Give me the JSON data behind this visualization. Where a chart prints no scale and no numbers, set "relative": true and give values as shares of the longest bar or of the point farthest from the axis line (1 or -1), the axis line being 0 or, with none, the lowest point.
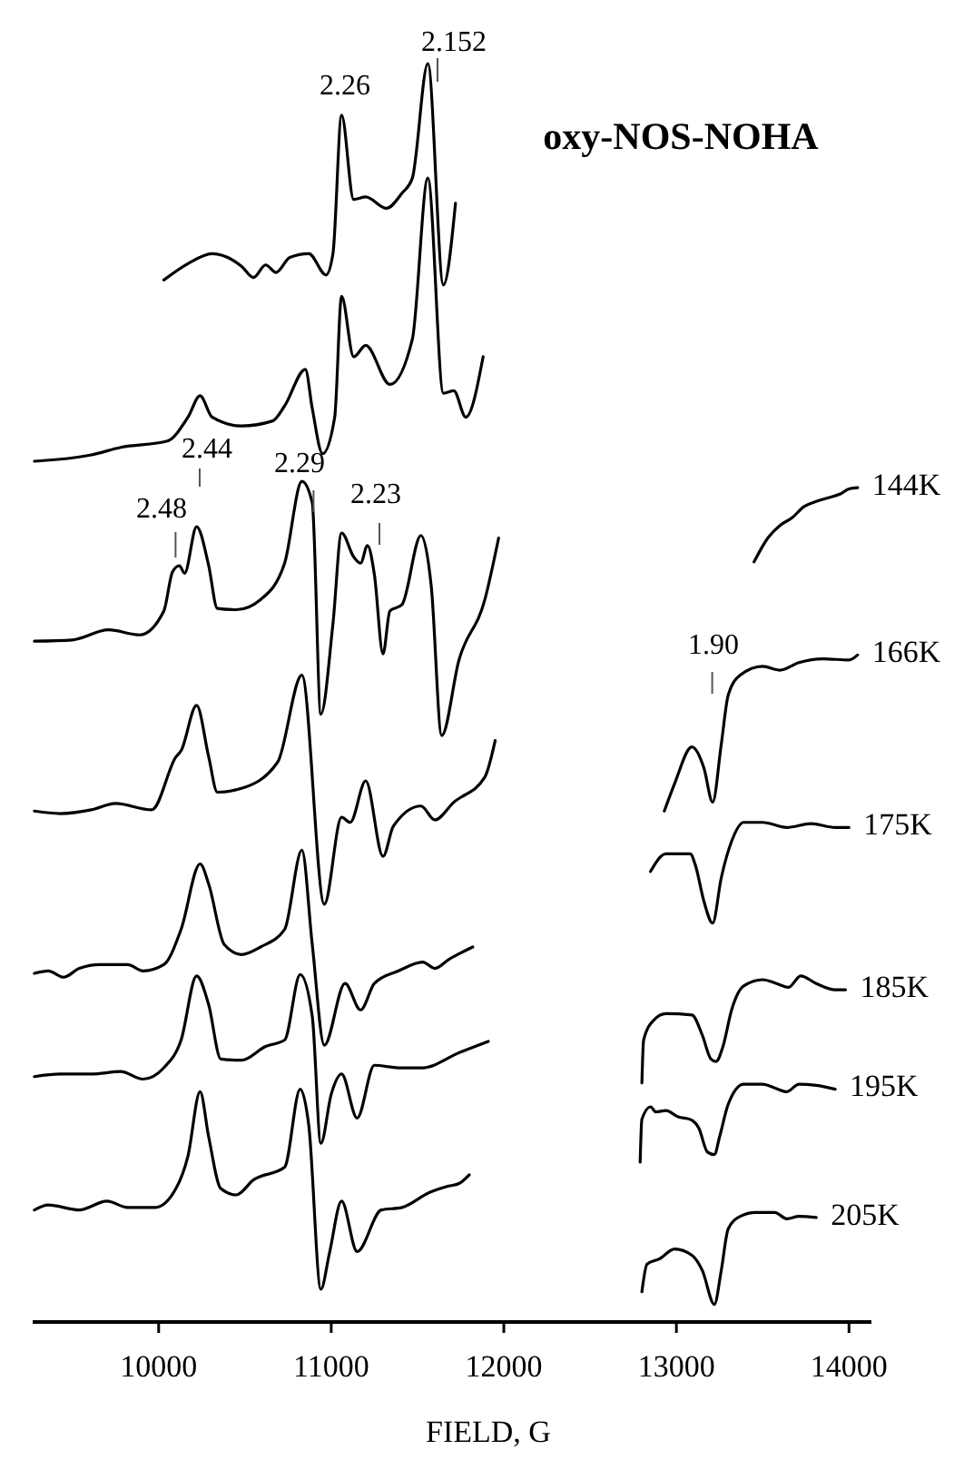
{
  "chart_data": {
    "type": "line",
    "title": "oxy-NOS-NOHA",
    "xlabel": "FIELD, G",
    "relative": true,
    "xlim": [
      9270,
      14130
    ],
    "xticks": [
      10000,
      11000,
      12000,
      13000,
      14000
    ],
    "series": [
      {
        "color": "#000000",
        "x": [
          10030,
          10170,
          10310,
          10480,
          10550,
          10620,
          10680,
          10760,
          10870,
          10970,
          11010,
          11060,
          11130,
          11200,
          11320,
          11410,
          11470,
          11560,
          11650,
          11720
        ],
        "values": [
          0.828,
          0.841,
          0.849,
          0.839,
          0.83,
          0.84,
          0.834,
          0.846,
          0.849,
          0.832,
          0.849,
          0.959,
          0.892,
          0.894,
          0.885,
          0.897,
          0.909,
          1.0,
          0.824,
          0.889
        ]
      },
      {
        "name": "144K",
        "color": "#000000",
        "x": [
          9280,
          9610,
          9780,
          10050,
          10170,
          10240,
          10310,
          10480,
          10660,
          10730,
          10850,
          10890,
          10950,
          11020,
          11060,
          11130,
          11200,
          11340,
          11470,
          11560,
          11650,
          11710,
          11780,
          11880,
          12500,
          13450,
          13530,
          13600,
          13670,
          13740,
          13810,
          13880,
          13950,
          14000,
          14050
        ],
        "values": [
          0.684,
          0.689,
          0.695,
          0.7,
          0.719,
          0.736,
          0.719,
          0.712,
          0.716,
          0.728,
          0.757,
          0.726,
          0.69,
          0.719,
          0.815,
          0.767,
          0.776,
          0.745,
          0.781,
          0.909,
          0.738,
          0.74,
          0.719,
          0.767,
          null,
          0.604,
          0.623,
          0.633,
          0.639,
          0.648,
          0.652,
          0.655,
          0.658,
          0.662,
          0.663
        ]
      },
      {
        "name": "166K",
        "color": "#000000",
        "x": [
          9280,
          9500,
          9710,
          9890,
          10030,
          10080,
          10120,
          10150,
          10220,
          10290,
          10340,
          10450,
          10590,
          10730,
          10830,
          10890,
          10940,
          11010,
          11060,
          11130,
          11170,
          11210,
          11250,
          11300,
          11340,
          11410,
          11520,
          11580,
          11640,
          11740,
          11890,
          11970,
          12500,
          12930,
          12990,
          13090,
          13160,
          13210,
          13260,
          13300,
          13370,
          13500,
          13600,
          13710,
          13850,
          14000,
          14050
        ],
        "values": [
          0.541,
          0.542,
          0.55,
          0.546,
          0.565,
          0.596,
          0.601,
          0.595,
          0.632,
          0.601,
          0.567,
          0.566,
          0.574,
          0.603,
          0.668,
          0.651,
          0.483,
          0.555,
          0.627,
          0.608,
          0.603,
          0.617,
          0.594,
          0.531,
          0.565,
          0.57,
          0.625,
          0.584,
          0.466,
          0.526,
          0.574,
          0.623,
          null,
          0.406,
          0.428,
          0.457,
          0.44,
          0.413,
          0.459,
          0.498,
          0.514,
          0.521,
          0.518,
          0.524,
          0.527,
          0.526,
          0.53
        ]
      },
      {
        "name": "175K",
        "color": "#000000",
        "x": [
          9280,
          9430,
          9610,
          9750,
          9960,
          10100,
          10130,
          10220,
          10290,
          10340,
          10480,
          10690,
          10830,
          10960,
          11060,
          11110,
          11200,
          11300,
          11360,
          11520,
          11600,
          11710,
          11890,
          11950,
          12400,
          12850,
          12940,
          13080,
          13110,
          13160,
          13210,
          13260,
          13320,
          13390,
          13500,
          13640,
          13780,
          13920,
          14000
        ],
        "values": [
          0.406,
          0.404,
          0.407,
          0.412,
          0.407,
          0.449,
          0.454,
          0.49,
          0.449,
          0.421,
          0.424,
          0.445,
          0.514,
          0.332,
          0.401,
          0.397,
          0.43,
          0.37,
          0.394,
          0.41,
          0.399,
          0.413,
          0.433,
          0.462,
          null,
          0.358,
          0.372,
          0.372,
          0.363,
          0.334,
          0.317,
          0.353,
          0.382,
          0.397,
          0.397,
          0.393,
          0.396,
          0.393,
          0.393
        ]
      },
      {
        "name": "185K",
        "color": "#000000",
        "x": [
          9280,
          9360,
          9450,
          9540,
          9660,
          9820,
          9910,
          10030,
          10130,
          10240,
          10290,
          10380,
          10480,
          10590,
          10730,
          10830,
          10890,
          10960,
          11080,
          11170,
          11250,
          11390,
          11530,
          11600,
          11680,
          11820,
          12300,
          12800,
          12810,
          12870,
          12940,
          13090,
          13150,
          13200,
          13230,
          13270,
          13320,
          13390,
          13500,
          13580,
          13650,
          13720,
          13810,
          13920,
          13980
        ],
        "values": [
          0.277,
          0.279,
          0.274,
          0.281,
          0.284,
          0.284,
          0.279,
          0.284,
          0.312,
          0.364,
          0.348,
          0.3,
          0.292,
          0.298,
          0.312,
          0.375,
          0.3,
          0.22,
          0.269,
          0.248,
          0.269,
          0.279,
          0.286,
          0.281,
          0.288,
          0.298,
          null,
          0.19,
          0.224,
          0.24,
          0.245,
          0.244,
          0.228,
          0.209,
          0.207,
          0.219,
          0.248,
          0.267,
          0.272,
          0.269,
          0.266,
          0.275,
          0.269,
          0.264,
          0.264
        ]
      },
      {
        "name": "195K",
        "color": "#000000",
        "x": [
          9280,
          9430,
          9610,
          9780,
          9910,
          10030,
          10130,
          10220,
          10290,
          10360,
          10480,
          10620,
          10730,
          10820,
          10890,
          10940,
          11000,
          11060,
          11150,
          11250,
          11390,
          11530,
          11740,
          11910,
          12300,
          12790,
          12800,
          12850,
          12880,
          12940,
          13010,
          13080,
          13130,
          13180,
          13220,
          13250,
          13300,
          13390,
          13500,
          13570,
          13640,
          13710,
          13810,
          13920
        ],
        "values": [
          0.195,
          0.197,
          0.197,
          0.199,
          0.193,
          0.202,
          0.224,
          0.275,
          0.252,
          0.209,
          0.208,
          0.219,
          0.224,
          0.276,
          0.243,
          0.142,
          0.181,
          0.197,
          0.162,
          0.204,
          0.202,
          0.202,
          0.214,
          0.223,
          null,
          0.127,
          0.161,
          0.171,
          0.167,
          0.168,
          0.163,
          0.161,
          0.154,
          0.135,
          0.133,
          0.147,
          0.173,
          0.189,
          0.189,
          0.186,
          0.183,
          0.189,
          0.188,
          0.185
        ]
      },
      {
        "name": "205K",
        "color": "#000000",
        "x": [
          9280,
          9360,
          9540,
          9700,
          9820,
          9980,
          10100,
          10170,
          10240,
          10290,
          10360,
          10450,
          10550,
          10730,
          10820,
          10870,
          10940,
          10990,
          11060,
          11150,
          11290,
          11410,
          11570,
          11680,
          11740,
          11800,
          12300,
          12800,
          12830,
          12900,
          12990,
          13090,
          13150,
          13220,
          13260,
          13300,
          13370,
          13460,
          13570,
          13640,
          13710,
          13810
        ],
        "values": [
          0.089,
          0.093,
          0.089,
          0.096,
          0.091,
          0.091,
          0.106,
          0.132,
          0.183,
          0.147,
          0.106,
          0.101,
          0.113,
          0.123,
          0.185,
          0.156,
          0.026,
          0.055,
          0.096,
          0.056,
          0.089,
          0.091,
          0.103,
          0.108,
          0.11,
          0.117,
          null,
          0.024,
          0.046,
          0.05,
          0.058,
          0.053,
          0.041,
          0.014,
          0.041,
          0.074,
          0.084,
          0.087,
          0.087,
          0.082,
          0.084,
          0.083
        ]
      }
    ],
    "annotations": [
      "2.26",
      "2.152",
      "2.48",
      "2.44",
      "2.29",
      "2.23",
      "1.90"
    ]
  }
}
